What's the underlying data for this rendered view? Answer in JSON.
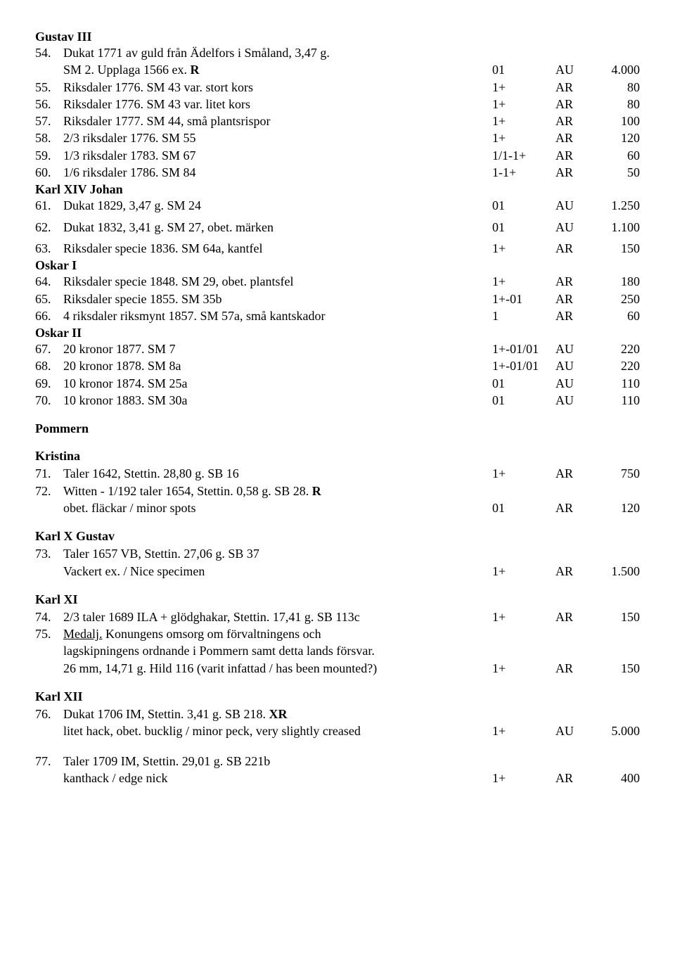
{
  "gustav_iii": {
    "title": "Gustav III",
    "r54": {
      "num": "54.",
      "desc": "Dukat 1771 av guld från Ädelfors i Småland, 3,47 g.",
      "desc2": "SM 2. Upplaga 1566 ex. ",
      "bold": "R",
      "grade": "01",
      "metal": "AU",
      "price": "4.000"
    },
    "r55": {
      "num": "55.",
      "desc": "Riksdaler 1776. SM 43 var. stort kors",
      "grade": "1+",
      "metal": "AR",
      "price": "80"
    },
    "r56": {
      "num": "56.",
      "desc": "Riksdaler 1776. SM 43 var. litet kors",
      "grade": "1+",
      "metal": "AR",
      "price": "80"
    },
    "r57": {
      "num": "57.",
      "desc": "Riksdaler 1777. SM 44, små plantsrispor",
      "grade": "1+",
      "metal": "AR",
      "price": "100"
    },
    "r58": {
      "num": "58.",
      "desc": "2/3 riksdaler 1776. SM 55",
      "grade": "1+",
      "metal": "AR",
      "price": "120"
    },
    "r59": {
      "num": "59.",
      "desc": "1/3 riksdaler 1783. SM 67",
      "grade": "1/1-1+",
      "metal": "AR",
      "price": "60"
    },
    "r60": {
      "num": "60.",
      "desc": "1/6 riksdaler 1786. SM 84",
      "grade": "1-1+",
      "metal": "AR",
      "price": "50"
    }
  },
  "karl_xiv_johan": {
    "title": "Karl XIV Johan",
    "r61": {
      "num": "61.",
      "desc": "Dukat 1829, 3,47 g. SM 24",
      "grade": "01",
      "metal": "AU",
      "price": "1.250"
    },
    "r62": {
      "num": "62.",
      "desc": "Dukat 1832, 3,41 g. SM 27, obet. märken",
      "grade": "01",
      "metal": "AU",
      "price": "1.100"
    },
    "r63": {
      "num": "63.",
      "desc": "Riksdaler specie 1836. SM 64a, kantfel",
      "grade": "1+",
      "metal": "AR",
      "price": "150"
    }
  },
  "oskar_i": {
    "title": "Oskar I",
    "r64": {
      "num": "64.",
      "desc": "Riksdaler specie 1848. SM 29, obet. plantsfel",
      "grade": "1+",
      "metal": "AR",
      "price": "180"
    },
    "r65": {
      "num": "65.",
      "desc": "Riksdaler specie 1855. SM 35b",
      "grade": "1+-01",
      "metal": "AR",
      "price": "250"
    },
    "r66": {
      "num": "66.",
      "desc": "4 riksdaler riksmynt 1857. SM 57a, små kantskador",
      "grade": "1",
      "metal": "AR",
      "price": "60"
    }
  },
  "oskar_ii": {
    "title": "Oskar II",
    "r67": {
      "num": "67.",
      "desc": "20 kronor 1877. SM 7",
      "grade": "1+-01/01",
      "metal": "AU",
      "price": "220"
    },
    "r68": {
      "num": "68.",
      "desc": "20 kronor 1878. SM 8a",
      "grade": "1+-01/01",
      "metal": "AU",
      "price": "220"
    },
    "r69": {
      "num": "69.",
      "desc": "10 kronor 1874. SM 25a",
      "grade": "01",
      "metal": "AU",
      "price": "110"
    },
    "r70": {
      "num": "70.",
      "desc": "10 kronor 1883. SM 30a",
      "grade": "01",
      "metal": "AU",
      "price": "110"
    }
  },
  "pommern": {
    "title": "Pommern"
  },
  "kristina": {
    "title": "Kristina",
    "r71": {
      "num": "71.",
      "desc": "Taler 1642, Stettin. 28,80 g. SB 16",
      "grade": "1+",
      "metal": "AR",
      "price": "750"
    },
    "r72": {
      "num": "72.",
      "desc": "Witten - 1/192 taler 1654, Stettin. 0,58 g. SB 28. ",
      "bold": "R",
      "desc2": "obet. fläckar / minor spots",
      "grade": "01",
      "metal": "AR",
      "price": "120"
    }
  },
  "karl_x_gustav": {
    "title": "Karl X Gustav",
    "r73": {
      "num": "73.",
      "desc": "Taler 1657 VB, Stettin. 27,06 g. SB 37",
      "desc2": "Vackert ex. / Nice specimen",
      "grade": "1+",
      "metal": "AR",
      "price": "1.500"
    }
  },
  "karl_xi": {
    "title": "Karl XI",
    "r74": {
      "num": "74.",
      "desc": "2/3 taler 1689 ILA + glödghakar, Stettin. 17,41 g. SB 113c",
      "grade": "1+",
      "metal": "AR",
      "price": "150"
    },
    "r75": {
      "num": "75.",
      "u": "Medalj.",
      "desc": " Konungens omsorg om förvaltningens och",
      "desc2": "lagskipningens ordnande i Pommern samt detta lands försvar.",
      "desc3": "26 mm, 14,71 g. Hild 116 (varit infattad / has been mounted?)",
      "grade": "1+",
      "metal": "AR",
      "price": "150"
    }
  },
  "karl_xii": {
    "title": "Karl XII",
    "r76": {
      "num": "76.",
      "desc": "Dukat 1706 IM, Stettin. 3,41 g. SB 218. ",
      "bold": "XR",
      "desc2": "litet hack, obet. bucklig / minor peck, very slightly creased",
      "grade": "1+",
      "metal": "AU",
      "price": "5.000"
    },
    "r77": {
      "num": "77.",
      "desc": "Taler 1709 IM, Stettin. 29,01 g. SB 221b",
      "desc2": "kanthack / edge nick",
      "grade": "1+",
      "metal": "AR",
      "price": "400"
    }
  }
}
